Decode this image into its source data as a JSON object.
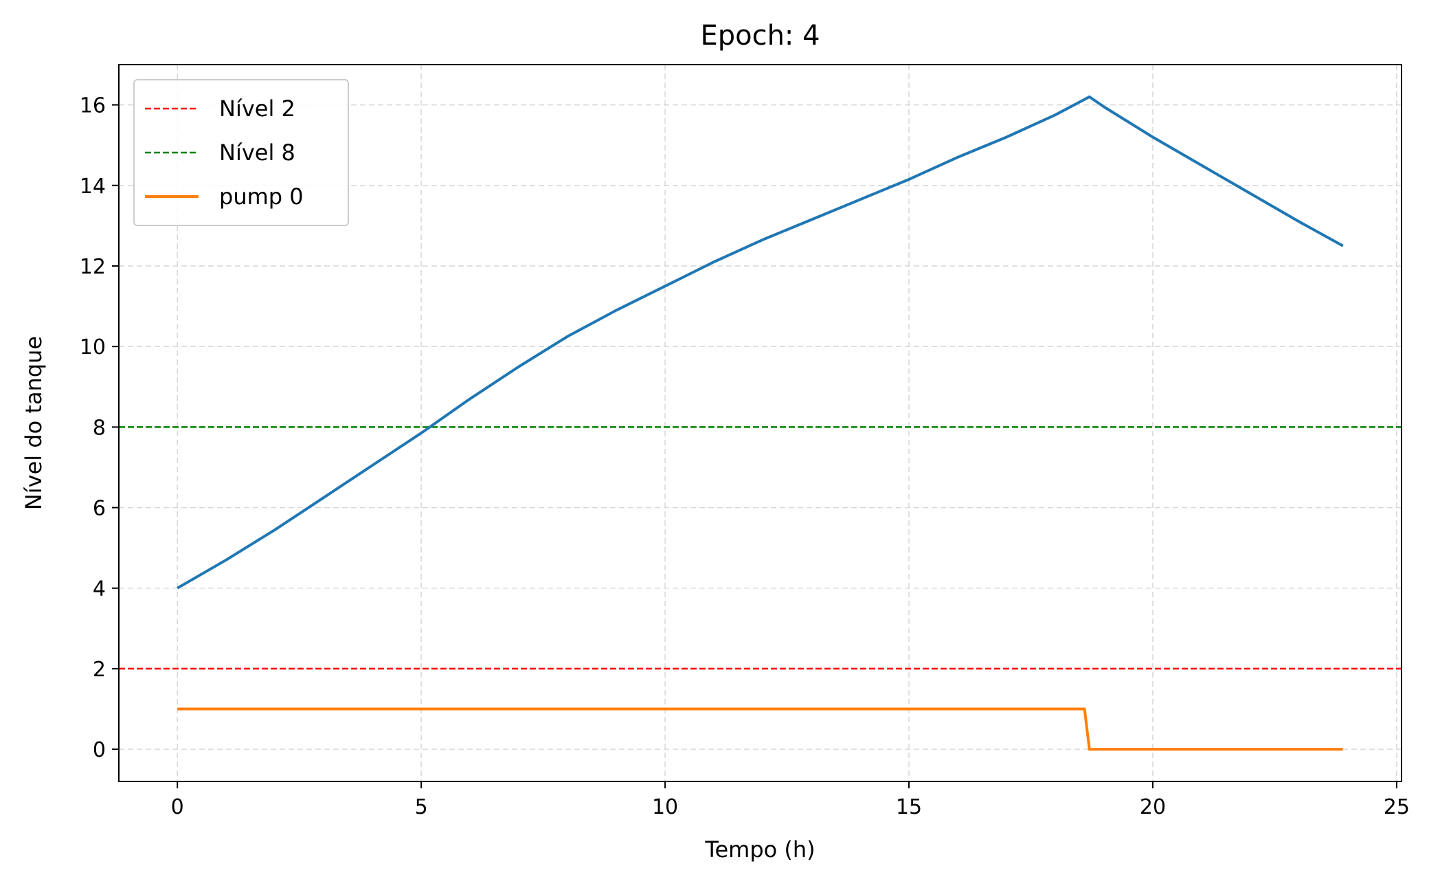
{
  "chart_data": {
    "type": "line",
    "title": "Epoch: 4",
    "xlabel": "Tempo (h)",
    "ylabel": "Nível do tanque",
    "xlim": [
      -1.2,
      25.1
    ],
    "ylim": [
      -0.8,
      17.0
    ],
    "xticks": [
      0,
      5,
      10,
      15,
      20,
      25
    ],
    "yticks": [
      0,
      2,
      4,
      6,
      8,
      10,
      12,
      14,
      16
    ],
    "grid": true,
    "legend_position": "top-left",
    "series": [
      {
        "name": "",
        "color": "#1f77b4",
        "style": "solid",
        "x": [
          0,
          1,
          2,
          3,
          4,
          5,
          6,
          7,
          8,
          9,
          10,
          11,
          12,
          13,
          14,
          15,
          16,
          17,
          18,
          18.7,
          19,
          20,
          21,
          22,
          23,
          23.9
        ],
        "y": [
          4.0,
          4.7,
          5.45,
          6.25,
          7.05,
          7.85,
          8.7,
          9.5,
          10.25,
          10.9,
          11.5,
          12.1,
          12.65,
          13.15,
          13.65,
          14.15,
          14.7,
          15.2,
          15.75,
          16.2,
          15.95,
          15.2,
          14.5,
          13.8,
          13.1,
          12.5
        ]
      },
      {
        "name": "Nível 2",
        "color": "#ff0000",
        "style": "dashed",
        "hline": 2
      },
      {
        "name": "Nível 8",
        "color": "#008000",
        "style": "dashed",
        "hline": 8
      },
      {
        "name": "pump 0",
        "color": "#ff7f0e",
        "style": "solid",
        "x": [
          0,
          18.6,
          18.7,
          23.9
        ],
        "y": [
          1,
          1,
          0,
          0
        ]
      }
    ]
  }
}
